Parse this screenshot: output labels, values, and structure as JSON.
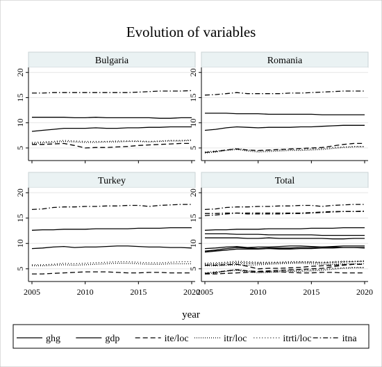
{
  "chart_data": {
    "type": "line",
    "title": "Evolution of variables",
    "xlabel": "year",
    "ylabel": "",
    "xlim": [
      2005,
      2020
    ],
    "ylim": [
      2.5,
      21
    ],
    "x_ticks": [
      2005,
      2010,
      2015,
      2020
    ],
    "y_ticks": [
      5,
      10,
      15,
      20
    ],
    "grid": true,
    "legend_position": "bottom",
    "legend": [
      {
        "key": "ghg",
        "label": "ghg",
        "dash": ""
      },
      {
        "key": "gdp",
        "label": "gdp",
        "dash": ""
      },
      {
        "key": "ite",
        "label": "ite/loc",
        "dash": "7,4"
      },
      {
        "key": "itr",
        "label": "itr/loc",
        "dash": "1,2"
      },
      {
        "key": "itrti",
        "label": "itrti/loc",
        "dash": "1,3"
      },
      {
        "key": "itna",
        "label": "itna",
        "dash": "7,3,1.5,3"
      }
    ],
    "x": [
      2005,
      2006,
      2007,
      2008,
      2009,
      2010,
      2011,
      2012,
      2013,
      2014,
      2015,
      2016,
      2017,
      2018,
      2019,
      2020
    ],
    "panels": [
      {
        "title": "Bulgaria",
        "series": [
          {
            "key": "ghg",
            "values": [
              11.1,
              11.1,
              11.1,
              11.1,
              11.0,
              11.0,
              11.1,
              11.0,
              11.0,
              11.0,
              11.0,
              11.0,
              10.9,
              10.9,
              11.0,
              11.0
            ]
          },
          {
            "key": "gdp",
            "values": [
              8.3,
              8.5,
              8.7,
              8.9,
              8.9,
              8.9,
              9.0,
              8.9,
              8.9,
              9.0,
              9.0,
              9.1,
              9.1,
              9.2,
              9.2,
              9.2
            ]
          },
          {
            "key": "ite",
            "values": [
              5.7,
              5.7,
              5.8,
              5.9,
              5.5,
              5.0,
              5.1,
              5.1,
              5.2,
              5.3,
              5.5,
              5.6,
              5.7,
              5.8,
              5.9,
              5.9
            ]
          },
          {
            "key": "itr",
            "values": [
              5.9,
              6.0,
              6.1,
              6.3,
              6.2,
              6.1,
              6.1,
              6.2,
              6.2,
              6.3,
              6.3,
              6.2,
              6.3,
              6.4,
              6.4,
              6.5
            ]
          },
          {
            "key": "itrti",
            "values": [
              6.1,
              6.2,
              6.3,
              6.5,
              6.4,
              6.3,
              6.3,
              6.3,
              6.4,
              6.4,
              6.4,
              6.3,
              6.4,
              6.5,
              6.5,
              6.6
            ]
          },
          {
            "key": "itna",
            "values": [
              15.9,
              15.9,
              16.0,
              16.0,
              16.0,
              16.0,
              16.0,
              16.0,
              16.0,
              16.0,
              16.1,
              16.2,
              16.3,
              16.3,
              16.3,
              16.4
            ]
          }
        ]
      },
      {
        "title": "Romania",
        "series": [
          {
            "key": "ghg",
            "values": [
              11.9,
              11.9,
              11.9,
              11.8,
              11.8,
              11.8,
              11.7,
              11.7,
              11.7,
              11.7,
              11.7,
              11.6,
              11.6,
              11.6,
              11.6,
              11.6
            ]
          },
          {
            "key": "gdp",
            "values": [
              8.5,
              8.7,
              9.0,
              9.2,
              9.1,
              9.0,
              9.1,
              9.1,
              9.1,
              9.2,
              9.2,
              9.3,
              9.4,
              9.5,
              9.5,
              9.5
            ]
          },
          {
            "key": "ite",
            "values": [
              4.1,
              4.3,
              4.6,
              4.8,
              4.6,
              4.5,
              4.6,
              4.7,
              4.8,
              4.9,
              5.0,
              5.1,
              5.4,
              5.7,
              5.9,
              5.9
            ]
          },
          {
            "key": "itr",
            "values": [
              4.0,
              4.2,
              4.5,
              4.7,
              4.4,
              4.2,
              4.3,
              4.4,
              4.5,
              4.5,
              4.6,
              4.7,
              4.9,
              5.1,
              5.2,
              5.2
            ]
          },
          {
            "key": "itrti",
            "values": [
              4.2,
              4.4,
              4.6,
              4.9,
              4.6,
              4.4,
              4.5,
              4.6,
              4.7,
              4.7,
              4.8,
              4.9,
              5.1,
              5.2,
              5.3,
              5.3
            ]
          },
          {
            "key": "itna",
            "values": [
              15.5,
              15.6,
              15.8,
              16.0,
              15.8,
              15.8,
              15.8,
              15.8,
              15.9,
              15.9,
              16.0,
              16.1,
              16.2,
              16.3,
              16.3,
              16.3
            ]
          }
        ]
      },
      {
        "title": "Turkey",
        "series": [
          {
            "key": "ghg",
            "values": [
              12.6,
              12.7,
              12.7,
              12.8,
              12.8,
              12.8,
              12.9,
              12.9,
              12.9,
              12.9,
              13.0,
              13.0,
              13.0,
              13.1,
              13.1,
              13.1
            ]
          },
          {
            "key": "gdp",
            "values": [
              9.0,
              9.1,
              9.3,
              9.4,
              9.2,
              9.3,
              9.3,
              9.4,
              9.5,
              9.5,
              9.4,
              9.3,
              9.3,
              9.2,
              9.2,
              9.1
            ]
          },
          {
            "key": "ite",
            "values": [
              4.0,
              4.0,
              4.1,
              4.2,
              4.3,
              4.4,
              4.4,
              4.4,
              4.3,
              4.2,
              4.2,
              4.3,
              4.3,
              4.2,
              4.2,
              4.2
            ]
          },
          {
            "key": "itr",
            "values": [
              5.6,
              5.6,
              5.7,
              5.8,
              5.7,
              5.8,
              5.9,
              6.0,
              6.1,
              6.1,
              6.0,
              5.9,
              5.9,
              6.0,
              6.0,
              6.0
            ]
          },
          {
            "key": "itrti",
            "values": [
              5.8,
              5.8,
              5.9,
              6.1,
              6.0,
              6.1,
              6.2,
              6.3,
              6.4,
              6.4,
              6.3,
              6.2,
              6.2,
              6.3,
              6.4,
              6.4
            ]
          },
          {
            "key": "itna",
            "values": [
              16.7,
              16.8,
              17.1,
              17.2,
              17.2,
              17.3,
              17.3,
              17.4,
              17.4,
              17.5,
              17.5,
              17.3,
              17.5,
              17.6,
              17.7,
              17.7
            ]
          }
        ]
      },
      {
        "title": "Total",
        "combine": [
          0,
          1,
          2
        ]
      }
    ]
  }
}
